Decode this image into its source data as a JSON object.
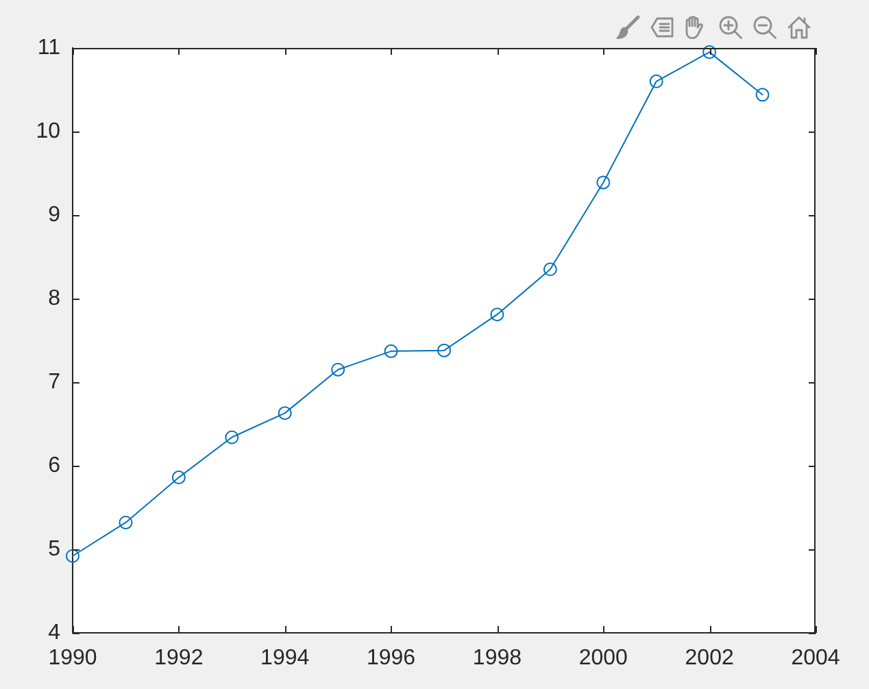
{
  "chart_data": {
    "type": "line",
    "x": [
      1990,
      1991,
      1992,
      1993,
      1994,
      1995,
      1996,
      1997,
      1998,
      1999,
      2000,
      2001,
      2002,
      2003
    ],
    "series": [
      {
        "color": "#0072bd",
        "values": [
          4.92,
          5.32,
          5.86,
          6.34,
          6.63,
          7.15,
          7.37,
          7.38,
          7.81,
          8.35,
          9.39,
          10.6,
          10.95,
          10.44
        ]
      }
    ],
    "xlim": [
      1990,
      2004
    ],
    "xticks": [
      1990,
      1992,
      1994,
      1996,
      1998,
      2000,
      2002,
      2004
    ],
    "ylim": [
      4,
      11
    ],
    "yticks": [
      4,
      5,
      6,
      7,
      8,
      9,
      10,
      11
    ],
    "grid": false,
    "legend": false,
    "marker": "circle",
    "line_style": "solid"
  }
}
